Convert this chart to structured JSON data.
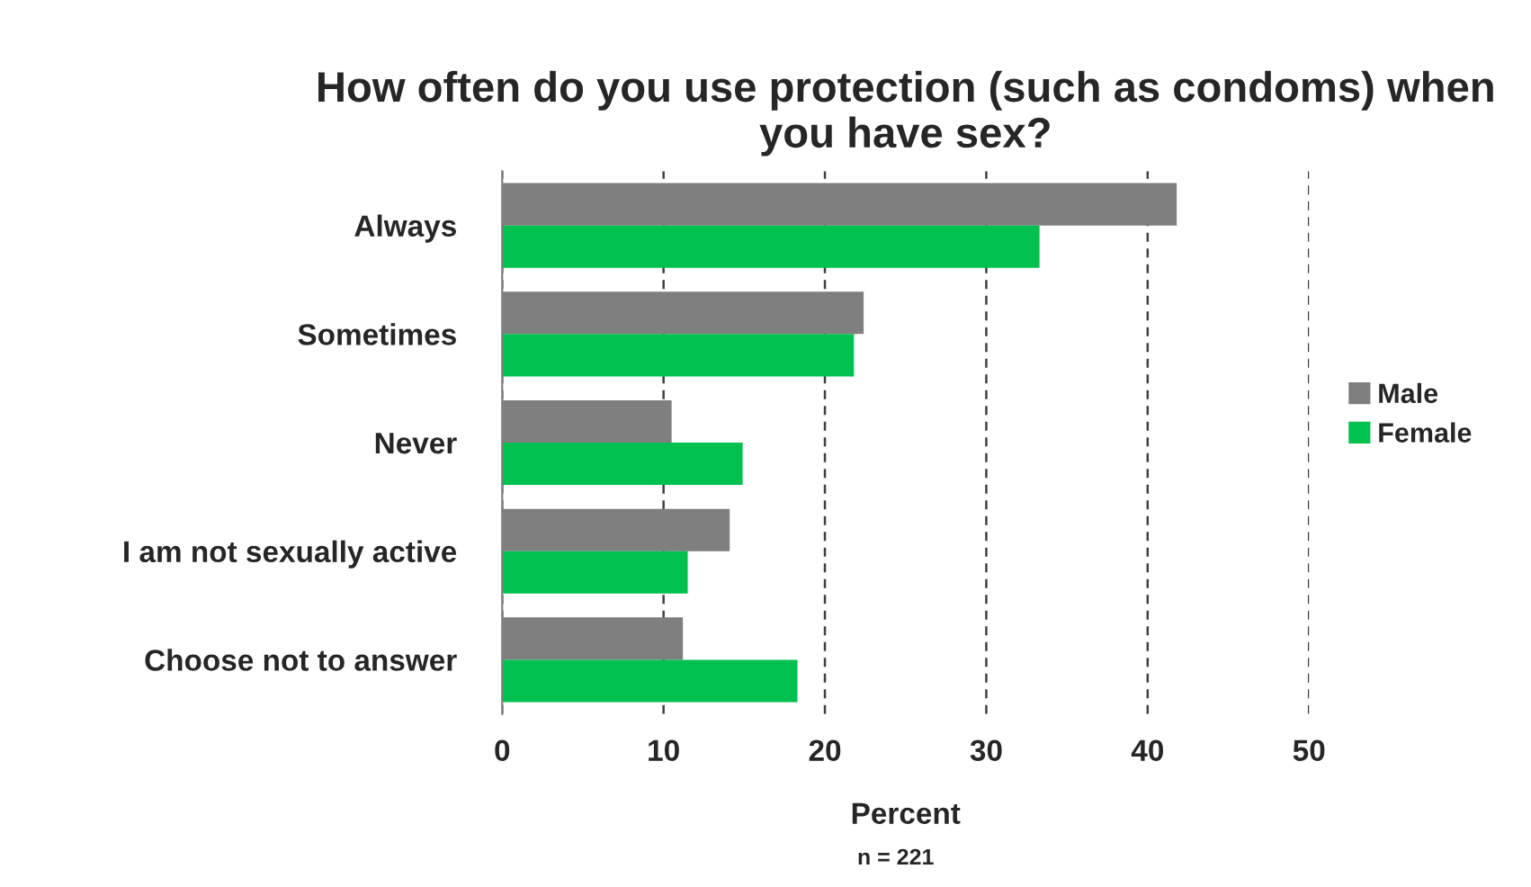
{
  "chart_data": {
    "type": "bar",
    "orientation": "horizontal",
    "title": "How often do you use protection (such as condoms) when you have sex?",
    "categories": [
      "Always",
      "Sometimes",
      "Never",
      "I am not sexually active",
      "Choose not to answer"
    ],
    "series": [
      {
        "name": "Male",
        "color": "#7f7f7f",
        "values": [
          41.8,
          22.4,
          10.5,
          14.1,
          11.2
        ]
      },
      {
        "name": "Female",
        "color": "#00c04f",
        "values": [
          33.3,
          21.8,
          14.9,
          11.5,
          18.3
        ]
      }
    ],
    "xlim": [
      0,
      50
    ],
    "xticks": [
      0,
      10,
      20,
      30,
      40,
      50
    ],
    "xlabel": "Percent",
    "annotations": [
      "n = 221"
    ],
    "grid": "x",
    "legend": "right"
  }
}
